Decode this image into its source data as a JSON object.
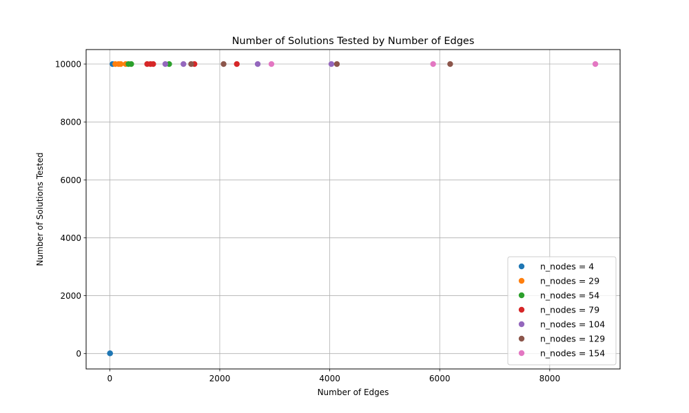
{
  "chart_data": {
    "type": "scatter",
    "title": "Number of Solutions Tested by Number of Edges",
    "xlabel": "Number of Edges",
    "ylabel": "Number of Solutions Tested",
    "xlim": [
      -430,
      9280
    ],
    "ylim": [
      -530,
      10500
    ],
    "xticks": [
      0,
      2000,
      4000,
      6000,
      8000
    ],
    "yticks": [
      0,
      2000,
      4000,
      6000,
      8000,
      10000
    ],
    "grid": true,
    "legend_position": "lower-right",
    "series": [
      {
        "name": "n_nodes = 4",
        "color": "#1f77b4",
        "points": [
          [
            3,
            10
          ],
          [
            6,
            10
          ],
          [
            50,
            10000
          ]
        ]
      },
      {
        "name": "n_nodes = 29",
        "color": "#ff7f0e",
        "points": [
          [
            100,
            10000
          ],
          [
            160,
            10000
          ],
          [
            200,
            10000
          ],
          [
            290,
            10000
          ]
        ]
      },
      {
        "name": "n_nodes = 54",
        "color": "#2ca02c",
        "points": [
          [
            340,
            10000
          ],
          [
            390,
            10000
          ],
          [
            1080,
            10000
          ]
        ]
      },
      {
        "name": "n_nodes = 79",
        "color": "#d62728",
        "points": [
          [
            680,
            10000
          ],
          [
            740,
            10000
          ],
          [
            790,
            10000
          ],
          [
            1540,
            10000
          ],
          [
            2310,
            10000
          ]
        ]
      },
      {
        "name": "n_nodes = 104",
        "color": "#9467bd",
        "points": [
          [
            1010,
            10000
          ],
          [
            1340,
            10000
          ],
          [
            2690,
            10000
          ],
          [
            4030,
            10000
          ]
        ]
      },
      {
        "name": "n_nodes = 129",
        "color": "#8c564b",
        "points": [
          [
            1480,
            10000
          ],
          [
            2070,
            10000
          ],
          [
            4130,
            10000
          ],
          [
            6190,
            10000
          ]
        ]
      },
      {
        "name": "n_nodes = 154",
        "color": "#e377c2",
        "points": [
          [
            2940,
            10000
          ],
          [
            5880,
            10000
          ],
          [
            8830,
            10000
          ]
        ]
      }
    ]
  }
}
